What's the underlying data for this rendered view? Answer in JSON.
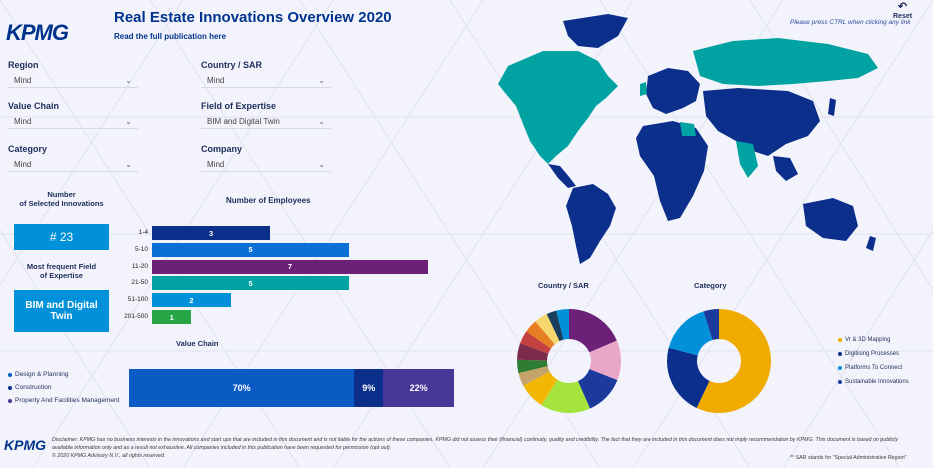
{
  "header": {
    "logo": "KPMG",
    "title": "Real Estate Innovations Overview 2020",
    "sublink": "Read the full publication here",
    "reset_label": "Reset",
    "ctrl_hint": "Please press CTRL when clicking any link"
  },
  "filters": [
    {
      "label": "Region",
      "value": "Mind"
    },
    {
      "label": "Country / SAR",
      "value": "Mind"
    },
    {
      "label": "Value Chain",
      "value": "Mind"
    },
    {
      "label": "Field of Expertise",
      "value": "BIM and Digital Twin"
    },
    {
      "label": "Category",
      "value": "Mind"
    },
    {
      "label": "Company",
      "value": "Mind"
    }
  ],
  "kpi": {
    "count_title": "Number\nof Selected Innovations",
    "count_value": "# 23",
    "field_title": "Most frequent Field\nof Expertise",
    "field_value": "BIM and Digital Twin"
  },
  "employees": {
    "title": "Number of Employees",
    "max": 7,
    "rows": [
      {
        "label": "1-4",
        "value": 3,
        "color": "#0b2f8a"
      },
      {
        "label": "5-10",
        "value": 5,
        "color": "#0a6fd4"
      },
      {
        "label": "11-20",
        "value": 7,
        "color": "#6d2077"
      },
      {
        "label": "21-50",
        "value": 5,
        "color": "#00a3a1"
      },
      {
        "label": "51-100",
        "value": 2,
        "color": "#0091da"
      },
      {
        "label": "201-500",
        "value": 1,
        "color": "#26a645"
      }
    ]
  },
  "value_chain": {
    "title": "Value Chain",
    "legend": [
      {
        "label": "Design & Planning",
        "color": "#0a5bc4"
      },
      {
        "label": "Construction",
        "color": "#0b2f8a"
      },
      {
        "label": "Property And Facilities Management",
        "color": "#483698"
      }
    ],
    "segments": [
      {
        "label": "70%",
        "value": 70,
        "color": "#0a5bc4"
      },
      {
        "label": "9%",
        "value": 9,
        "color": "#0b2f8a"
      },
      {
        "label": "22%",
        "value": 22,
        "color": "#483698"
      }
    ]
  },
  "country_donut": {
    "title": "Country / SAR",
    "slices": [
      {
        "value": 18,
        "color": "#6d2077"
      },
      {
        "value": 12,
        "color": "#e9a6c8"
      },
      {
        "value": 12,
        "color": "#1b3a9c"
      },
      {
        "value": 15,
        "color": "#a5e43c"
      },
      {
        "value": 8,
        "color": "#f2b705"
      },
      {
        "value": 4,
        "color": "#c4a46b"
      },
      {
        "value": 4,
        "color": "#2e7d32"
      },
      {
        "value": 5,
        "color": "#7b2c4a"
      },
      {
        "value": 4,
        "color": "#c44141"
      },
      {
        "value": 4,
        "color": "#e67e22"
      },
      {
        "value": 4,
        "color": "#f5d76e"
      },
      {
        "value": 3,
        "color": "#1a3f5e"
      },
      {
        "value": 4,
        "color": "#0091da"
      }
    ]
  },
  "category_donut": {
    "title": "Category",
    "slices": [
      {
        "label": "Vr & 3D Mapping",
        "value": 57,
        "color": "#f0ab00"
      },
      {
        "label": "Digitising Processes",
        "value": 22,
        "color": "#0b2f8a"
      },
      {
        "label": "Platforms To Connect",
        "value": 16,
        "color": "#0091da"
      },
      {
        "label": "Sustainable Innovations",
        "value": 5,
        "color": "#1b3a9c"
      }
    ]
  },
  "footer": {
    "logo": "KPMG",
    "disclaimer": "Disclaimer: KPMG has no business interests in the innovations and start ups that are included in this document and is not liable for the actions of these companies. KPMG did not assess their (financial) continuity, quality and credibility. The fact that they are included in this document does not imply recommendation by KPMG. This document is based on publicly available information only and as a result not exhaustive. All companies included in this publication have been requested for permission (opt out).",
    "copyright": "© 2020 KPMG Advisory N.V., all rights reserved.",
    "sar_note": "** SAR stands for \"Special Administrative Region\""
  },
  "map": {
    "highlight_color": "#00a3a1",
    "base_color": "#0b2f8a"
  }
}
